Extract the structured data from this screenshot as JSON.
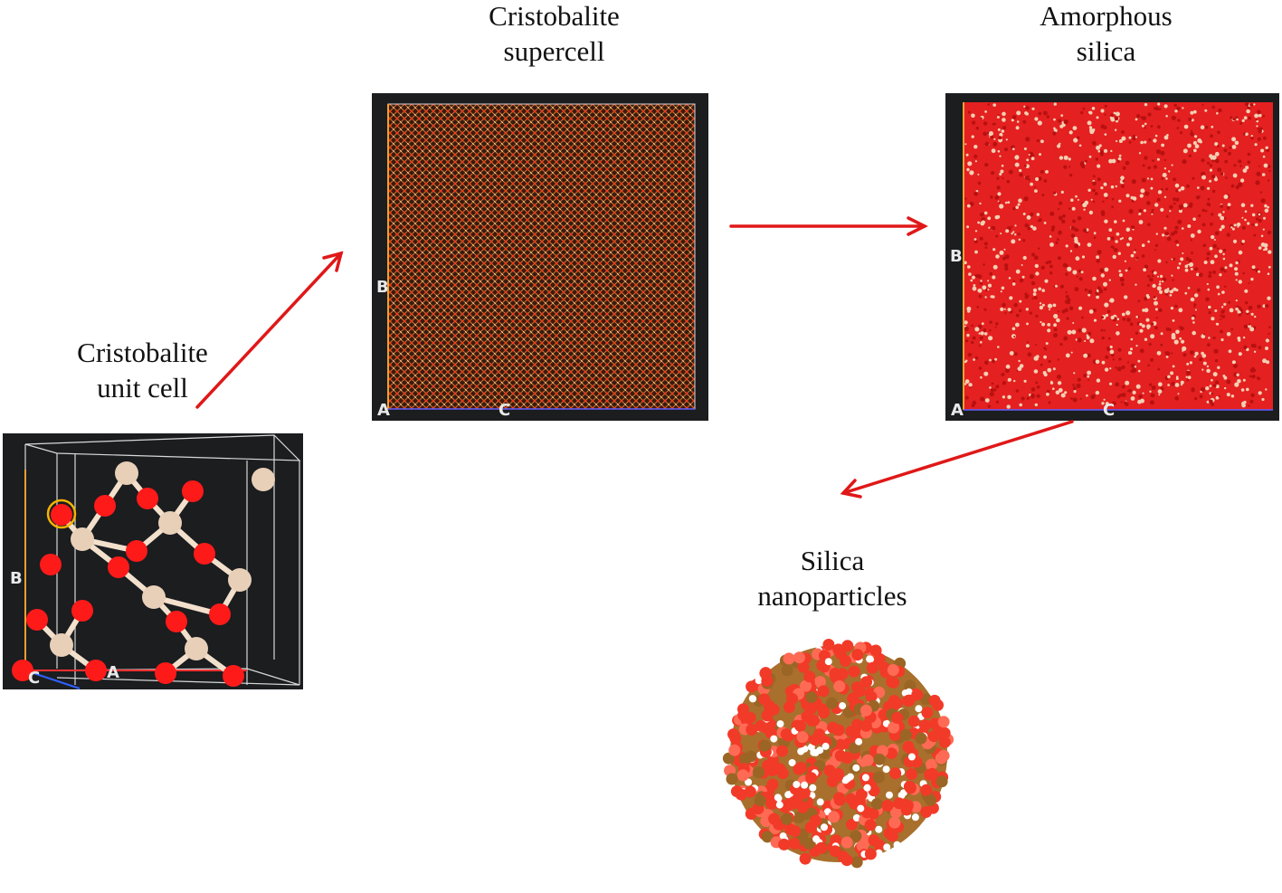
{
  "captions": {
    "unit_cell": {
      "line1": "Cristobalite",
      "line2": "unit cell"
    },
    "supercell": {
      "line1": "Cristobalite",
      "line2": "supercell"
    },
    "amorphous": {
      "line1": "Amorphous",
      "line2": "silica"
    },
    "nanoparticles": {
      "line1": "Silica",
      "line2": "nanoparticles"
    }
  },
  "axis_labels": {
    "unit_cell": {
      "a": "A",
      "b": "B",
      "c": "C"
    },
    "supercell": {
      "a": "A",
      "b": "B",
      "c": "C"
    },
    "amorphous": {
      "a": "A",
      "b": "B",
      "c": "C"
    }
  },
  "colors": {
    "arrow": "#e01818",
    "oxygen": "#ff1a1a",
    "silicon": "#e8cfb8",
    "panel_background": "#1b1d1f",
    "nanoparticle_core": "#a8702c",
    "hydrogen": "#ffffff"
  }
}
